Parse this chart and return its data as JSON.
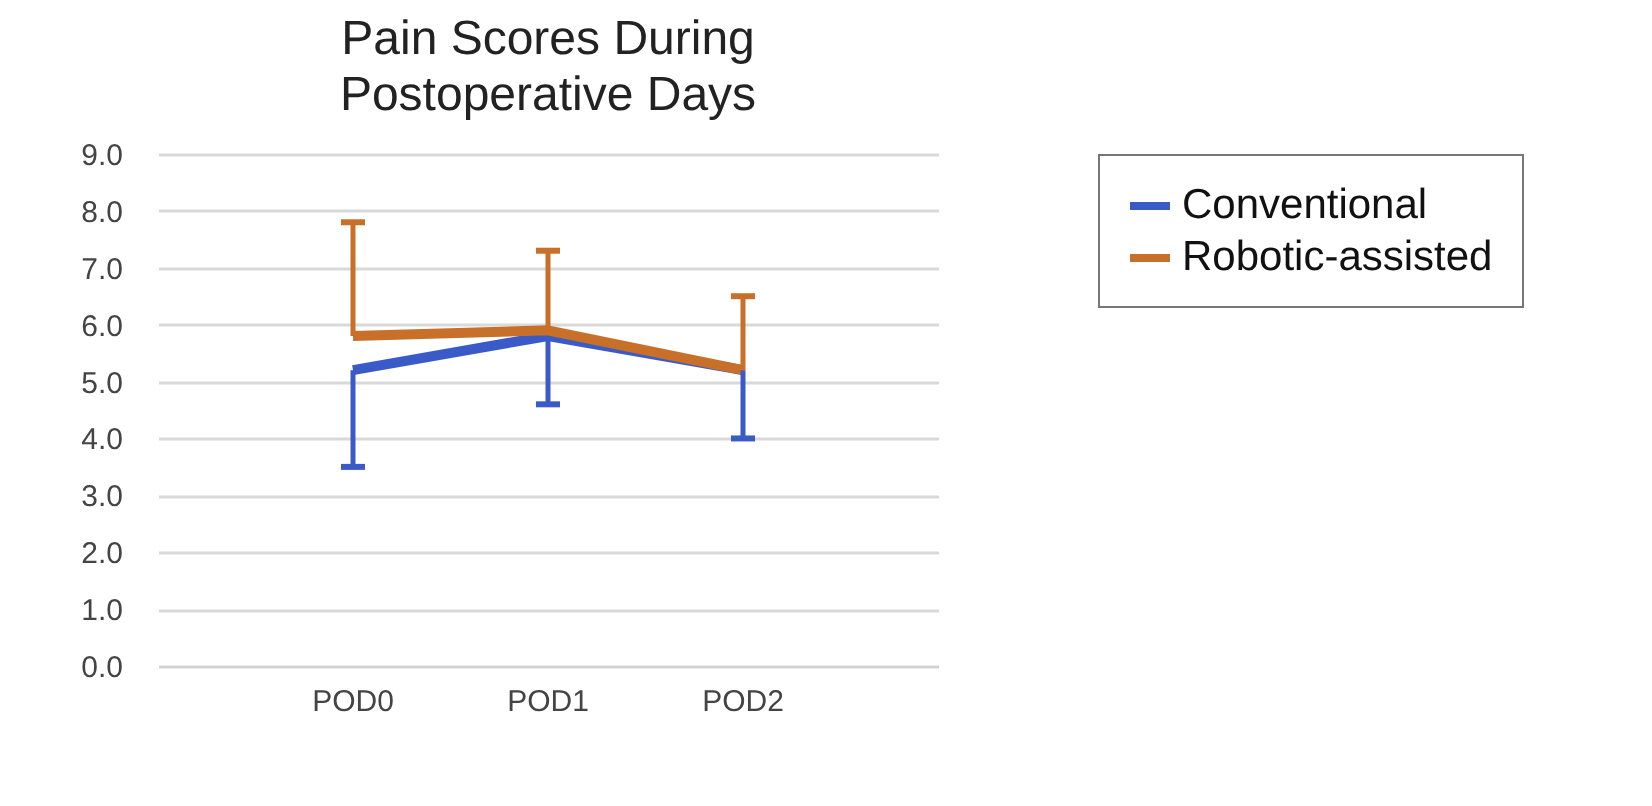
{
  "chart_data": {
    "type": "line",
    "title": "Pain Scores During Postoperative Days",
    "categories": [
      "POD0",
      "POD1",
      "POD2"
    ],
    "series": [
      {
        "name": "Conventional",
        "color": "#3a5bc7",
        "values": [
          5.2,
          5.8,
          5.2
        ],
        "errors": [
          [
            3.5,
            5.2
          ],
          [
            4.6,
            5.8
          ],
          [
            4.0,
            5.2
          ]
        ]
      },
      {
        "name": "Robotic-assisted",
        "color": "#c8702a",
        "values": [
          5.8,
          5.9,
          5.2
        ],
        "errors": [
          [
            5.8,
            7.8
          ],
          [
            5.9,
            7.3
          ],
          [
            5.2,
            6.5
          ]
        ]
      }
    ],
    "ylim": [
      0,
      9
    ],
    "yticks": [
      {
        "value": 0,
        "label": "0.0"
      },
      {
        "value": 1,
        "label": "1.0"
      },
      {
        "value": 2,
        "label": "2.0"
      },
      {
        "value": 3,
        "label": "3.0"
      },
      {
        "value": 4,
        "label": "4.0"
      },
      {
        "value": 5,
        "label": "5.0"
      },
      {
        "value": 6,
        "label": "6.0"
      },
      {
        "value": 7,
        "label": "7.0"
      },
      {
        "value": 8,
        "label": "8.0"
      },
      {
        "value": 9,
        "label": "9.0"
      }
    ],
    "grid": "y",
    "legend": "right",
    "marker": "none",
    "line_style": "solid"
  }
}
